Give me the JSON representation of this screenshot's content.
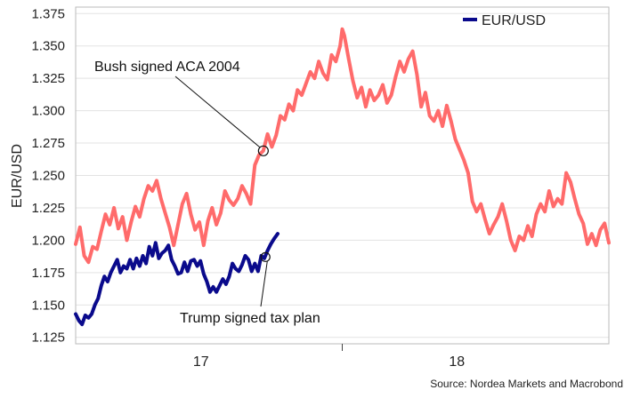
{
  "chart_data": {
    "type": "line",
    "ylabel": "EUR/USD",
    "ylim": [
      1.12,
      1.38
    ],
    "yticks": [
      1.125,
      1.15,
      1.175,
      1.2,
      1.225,
      1.25,
      1.275,
      1.3,
      1.325,
      1.35,
      1.375
    ],
    "ytick_labels": [
      "1.125",
      "1.150",
      "1.175",
      "1.200",
      "1.225",
      "1.250",
      "1.275",
      "1.300",
      "1.325",
      "1.350",
      "1.375"
    ],
    "grid": true,
    "legend": {
      "placement": "top-right",
      "entries": [
        {
          "label": "EUR/USD",
          "color": "#0a0a8c"
        }
      ]
    },
    "xlim": [
      0,
      100
    ],
    "xticks": [
      {
        "label": "17",
        "position": 23.5
      },
      {
        "label": "18",
        "position": 71.5
      }
    ],
    "xtick_marks": [
      50
    ],
    "series": [
      {
        "color": "#ff6b6b",
        "points": [
          [
            0.0,
            1.197
          ],
          [
            0.8,
            1.21
          ],
          [
            1.6,
            1.188
          ],
          [
            2.4,
            1.183
          ],
          [
            3.2,
            1.195
          ],
          [
            4.0,
            1.193
          ],
          [
            4.8,
            1.207
          ],
          [
            5.6,
            1.22
          ],
          [
            6.4,
            1.212
          ],
          [
            7.2,
            1.225
          ],
          [
            8.0,
            1.209
          ],
          [
            8.8,
            1.218
          ],
          [
            9.6,
            1.2
          ],
          [
            10.4,
            1.214
          ],
          [
            11.2,
            1.226
          ],
          [
            12.0,
            1.218
          ],
          [
            12.8,
            1.232
          ],
          [
            13.6,
            1.242
          ],
          [
            14.4,
            1.238
          ],
          [
            15.2,
            1.246
          ],
          [
            16.0,
            1.232
          ],
          [
            16.8,
            1.221
          ],
          [
            17.6,
            1.21
          ],
          [
            18.4,
            1.196
          ],
          [
            19.2,
            1.212
          ],
          [
            20.0,
            1.228
          ],
          [
            20.8,
            1.236
          ],
          [
            21.6,
            1.22
          ],
          [
            22.4,
            1.208
          ],
          [
            23.2,
            1.214
          ],
          [
            24.0,
            1.196
          ],
          [
            24.8,
            1.215
          ],
          [
            25.6,
            1.225
          ],
          [
            26.4,
            1.212
          ],
          [
            27.2,
            1.221
          ],
          [
            28.0,
            1.238
          ],
          [
            28.8,
            1.231
          ],
          [
            29.6,
            1.227
          ],
          [
            30.4,
            1.232
          ],
          [
            31.2,
            1.242
          ],
          [
            32.0,
            1.236
          ],
          [
            32.8,
            1.228
          ],
          [
            33.6,
            1.258
          ],
          [
            34.4,
            1.266
          ],
          [
            35.2,
            1.269
          ],
          [
            36.0,
            1.282
          ],
          [
            36.8,
            1.272
          ],
          [
            37.6,
            1.281
          ],
          [
            38.4,
            1.296
          ],
          [
            39.2,
            1.293
          ],
          [
            40.0,
            1.305
          ],
          [
            40.8,
            1.3
          ],
          [
            41.6,
            1.316
          ],
          [
            42.4,
            1.312
          ],
          [
            43.2,
            1.321
          ],
          [
            44.0,
            1.33
          ],
          [
            44.8,
            1.325
          ],
          [
            45.6,
            1.338
          ],
          [
            46.4,
            1.329
          ],
          [
            47.2,
            1.324
          ],
          [
            48.0,
            1.343
          ],
          [
            48.8,
            1.338
          ],
          [
            49.6,
            1.35
          ],
          [
            50.0,
            1.363
          ],
          [
            50.4,
            1.358
          ],
          [
            51.2,
            1.34
          ],
          [
            52.0,
            1.323
          ],
          [
            52.8,
            1.31
          ],
          [
            53.6,
            1.318
          ],
          [
            54.4,
            1.303
          ],
          [
            55.2,
            1.316
          ],
          [
            56.0,
            1.308
          ],
          [
            56.8,
            1.312
          ],
          [
            57.6,
            1.32
          ],
          [
            58.4,
            1.306
          ],
          [
            59.2,
            1.312
          ],
          [
            60.0,
            1.326
          ],
          [
            60.8,
            1.338
          ],
          [
            61.6,
            1.33
          ],
          [
            62.4,
            1.34
          ],
          [
            63.2,
            1.346
          ],
          [
            64.0,
            1.328
          ],
          [
            64.8,
            1.303
          ],
          [
            65.6,
            1.314
          ],
          [
            66.4,
            1.296
          ],
          [
            67.2,
            1.292
          ],
          [
            68.0,
            1.3
          ],
          [
            68.8,
            1.288
          ],
          [
            69.6,
            1.304
          ],
          [
            70.4,
            1.292
          ],
          [
            71.2,
            1.278
          ],
          [
            72.0,
            1.27
          ],
          [
            72.8,
            1.262
          ],
          [
            73.6,
            1.252
          ],
          [
            74.4,
            1.23
          ],
          [
            75.2,
            1.222
          ],
          [
            76.0,
            1.228
          ],
          [
            76.8,
            1.216
          ],
          [
            77.6,
            1.205
          ],
          [
            78.4,
            1.212
          ],
          [
            79.2,
            1.218
          ],
          [
            80.0,
            1.228
          ],
          [
            80.8,
            1.215
          ],
          [
            81.6,
            1.2
          ],
          [
            82.4,
            1.192
          ],
          [
            83.2,
            1.203
          ],
          [
            84.0,
            1.2
          ],
          [
            84.8,
            1.211
          ],
          [
            85.6,
            1.203
          ],
          [
            86.4,
            1.22
          ],
          [
            87.2,
            1.228
          ],
          [
            88.0,
            1.222
          ],
          [
            88.8,
            1.238
          ],
          [
            89.6,
            1.226
          ],
          [
            90.4,
            1.232
          ],
          [
            91.2,
            1.228
          ],
          [
            92.0,
            1.252
          ],
          [
            92.8,
            1.245
          ],
          [
            93.6,
            1.232
          ],
          [
            94.4,
            1.22
          ],
          [
            95.2,
            1.213
          ],
          [
            96.0,
            1.197
          ],
          [
            96.8,
            1.205
          ],
          [
            97.6,
            1.196
          ],
          [
            98.4,
            1.208
          ],
          [
            99.2,
            1.213
          ],
          [
            100.0,
            1.198
          ]
        ]
      },
      {
        "color": "#0a0a8c",
        "points": [
          [
            0.0,
            1.143
          ],
          [
            0.6,
            1.138
          ],
          [
            1.2,
            1.135
          ],
          [
            1.8,
            1.142
          ],
          [
            2.4,
            1.14
          ],
          [
            3.0,
            1.143
          ],
          [
            3.6,
            1.15
          ],
          [
            4.2,
            1.155
          ],
          [
            4.8,
            1.165
          ],
          [
            5.4,
            1.172
          ],
          [
            6.0,
            1.168
          ],
          [
            6.6,
            1.175
          ],
          [
            7.2,
            1.18
          ],
          [
            7.8,
            1.185
          ],
          [
            8.4,
            1.175
          ],
          [
            9.0,
            1.18
          ],
          [
            9.6,
            1.178
          ],
          [
            10.2,
            1.185
          ],
          [
            10.8,
            1.178
          ],
          [
            11.4,
            1.186
          ],
          [
            12.0,
            1.18
          ],
          [
            12.6,
            1.188
          ],
          [
            13.2,
            1.182
          ],
          [
            13.8,
            1.195
          ],
          [
            14.4,
            1.188
          ],
          [
            15.0,
            1.198
          ],
          [
            15.6,
            1.186
          ],
          [
            16.2,
            1.19
          ],
          [
            16.8,
            1.192
          ],
          [
            17.4,
            1.196
          ],
          [
            18.0,
            1.185
          ],
          [
            18.6,
            1.18
          ],
          [
            19.2,
            1.174
          ],
          [
            19.8,
            1.175
          ],
          [
            20.4,
            1.183
          ],
          [
            21.0,
            1.176
          ],
          [
            21.6,
            1.184
          ],
          [
            22.2,
            1.185
          ],
          [
            22.8,
            1.18
          ],
          [
            23.4,
            1.184
          ],
          [
            24.0,
            1.174
          ],
          [
            24.6,
            1.168
          ],
          [
            25.2,
            1.16
          ],
          [
            25.8,
            1.164
          ],
          [
            26.4,
            1.16
          ],
          [
            27.0,
            1.165
          ],
          [
            27.6,
            1.17
          ],
          [
            28.2,
            1.166
          ],
          [
            28.8,
            1.172
          ],
          [
            29.4,
            1.182
          ],
          [
            30.0,
            1.178
          ],
          [
            30.6,
            1.176
          ],
          [
            31.2,
            1.181
          ],
          [
            31.8,
            1.188
          ],
          [
            32.4,
            1.185
          ],
          [
            33.0,
            1.176
          ],
          [
            33.6,
            1.182
          ],
          [
            34.2,
            1.176
          ],
          [
            34.8,
            1.188
          ],
          [
            35.4,
            1.186
          ],
          [
            36.0,
            1.192
          ],
          [
            36.6,
            1.197
          ],
          [
            37.2,
            1.201
          ],
          [
            37.9,
            1.205
          ]
        ]
      }
    ],
    "annotations": [
      {
        "text": "Bush signed ACA 2004",
        "x": 35.2,
        "y": 1.269
      },
      {
        "text": "Trump signed tax plan",
        "x": 35.6,
        "y": 1.187
      }
    ],
    "source": "Source: Nordea Markets and Macrobond"
  }
}
